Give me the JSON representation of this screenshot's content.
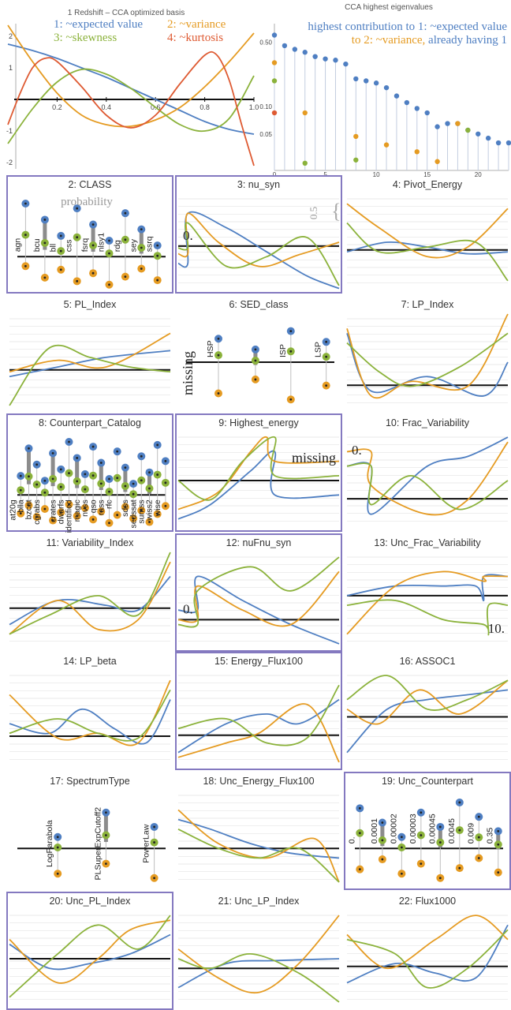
{
  "colors": {
    "blue": "#4f7fc2",
    "orange": "#e59b22",
    "green": "#8bb23b",
    "red": "#de5a32",
    "frame": "#8479c0",
    "gridline": "#e3e3e3",
    "axis": "#111111",
    "stem": "#bfbfbf",
    "barGray": "#8c8c8c"
  },
  "basis_chart": {
    "title": "1 Redshift – CCA optimized basis",
    "legend": [
      {
        "text": "1: ~expected value",
        "color": "blue"
      },
      {
        "text": "2: ~variance",
        "color": "orange"
      },
      {
        "text": "3: ~skewness",
        "color": "green"
      },
      {
        "text": "4: ~kurtosis",
        "color": "red"
      }
    ],
    "x_ticks": [
      "0.2",
      "0.4",
      "0.6",
      "0.8",
      "1.0"
    ],
    "y_ticks": [
      "2",
      "1",
      "-1",
      "-2"
    ]
  },
  "eigen_chart": {
    "title": "CCA highest eigenvalues",
    "annotation_line1": "highest contribution to 1: ~expected value",
    "annotation_line2_orange": "to 2: ~variance,",
    "annotation_line2_blue": " already having 1",
    "y_ticks": [
      "0.50",
      "0.10",
      "0.05"
    ],
    "x_ticks": [
      "0",
      "5",
      "10",
      "15",
      "20"
    ]
  },
  "chart_data": [
    {
      "type": "line",
      "title": "1 Redshift – CCA optimized basis",
      "xlim": [
        0,
        1.0
      ],
      "ylim": [
        -2.2,
        2.4
      ],
      "series": [
        {
          "name": "1: ~expected value",
          "color": "blue",
          "x": [
            0,
            0.1,
            0.2,
            0.3,
            0.4,
            0.5,
            0.6,
            0.7,
            0.8,
            0.9,
            1.0
          ],
          "values": [
            1.75,
            1.55,
            1.3,
            1.0,
            0.7,
            0.35,
            0.0,
            -0.35,
            -0.7,
            -0.95,
            -1.1
          ]
        },
        {
          "name": "2: ~variance",
          "color": "orange",
          "x": [
            0,
            0.1,
            0.2,
            0.3,
            0.4,
            0.5,
            0.6,
            0.7,
            0.8,
            0.9,
            1.0
          ],
          "values": [
            2.35,
            1.2,
            0.2,
            -0.5,
            -0.8,
            -0.85,
            -0.65,
            -0.25,
            0.4,
            1.2,
            2.1
          ]
        },
        {
          "name": "3: ~skewness",
          "color": "green",
          "x": [
            0,
            0.1,
            0.2,
            0.3,
            0.4,
            0.5,
            0.6,
            0.7,
            0.8,
            0.9,
            1.0
          ],
          "values": [
            -1.4,
            -0.3,
            0.55,
            0.95,
            0.8,
            0.35,
            -0.25,
            -0.8,
            -1.0,
            -0.6,
            0.75
          ]
        },
        {
          "name": "4: ~kurtosis",
          "color": "red",
          "x": [
            0,
            0.05,
            0.1,
            0.15,
            0.2,
            0.3,
            0.4,
            0.5,
            0.6,
            0.7,
            0.8,
            0.85,
            0.9,
            0.95,
            1.0
          ],
          "values": [
            -0.8,
            0.2,
            1.0,
            1.3,
            1.2,
            0.4,
            -0.5,
            -0.9,
            -0.5,
            0.5,
            1.4,
            1.4,
            0.6,
            -0.8,
            -2.1
          ]
        }
      ]
    },
    {
      "type": "scatter",
      "title": "CCA highest eigenvalues",
      "scale": "log",
      "xlim": [
        0,
        23
      ],
      "ylim": [
        0.02,
        0.8
      ],
      "series": [
        {
          "color": "blue",
          "x": [
            0,
            1,
            2,
            3,
            4,
            5,
            6,
            7,
            8,
            9,
            10,
            11,
            12,
            13,
            14,
            15,
            16,
            17,
            18,
            19,
            20,
            21,
            22,
            23
          ],
          "values": [
            0.6,
            0.46,
            0.42,
            0.39,
            0.35,
            0.33,
            0.32,
            0.29,
            0.2,
            0.19,
            0.18,
            0.16,
            0.13,
            0.11,
            0.095,
            0.085,
            0.06,
            0.065,
            0.065,
            0.055,
            0.05,
            0.045,
            0.04,
            0.04
          ]
        },
        {
          "color": "orange",
          "x": [
            0,
            3,
            8,
            11,
            14,
            16,
            18
          ],
          "values": [
            0.3,
            0.085,
            0.047,
            0.038,
            0.032,
            0.025,
            0.065
          ]
        },
        {
          "color": "green",
          "x": [
            0,
            3,
            8,
            19
          ],
          "values": [
            0.19,
            0.024,
            0.026,
            0.055
          ]
        },
        {
          "color": "red",
          "x": [
            0
          ],
          "values": [
            0.085
          ]
        }
      ]
    }
  ],
  "panels": [
    {
      "title": "2: CLASS",
      "frame": true,
      "kind": "categorical",
      "labels": [
        "agn",
        "bcu",
        "bll",
        "css",
        "fsrq",
        "nlsy1",
        "rdg",
        "sey",
        "ssrq"
      ],
      "axis_label": "probability",
      "label_pos": "above"
    },
    {
      "title": "3: nu_syn",
      "frame": true,
      "kind": "curve",
      "annotations": [
        "0.",
        "0.5",
        "{"
      ]
    },
    {
      "title": "4: Pivot_Energy",
      "frame": false,
      "kind": "curve",
      "annotations": []
    },
    {
      "title": "5: PL_Index",
      "frame": false,
      "kind": "curve",
      "annotations": []
    },
    {
      "title": "6: SED_class",
      "frame": false,
      "kind": "categorical",
      "labels": [
        "HSP",
        "ISP",
        "LSP"
      ],
      "missing_label": "missing",
      "label_pos": "above"
    },
    {
      "title": "7: LP_Index",
      "frame": false,
      "kind": "curve",
      "annotations": []
    },
    {
      "title": "8: Counterpart_Catalog",
      "frame": true,
      "kind": "categorical",
      "labels": [
        "at20g",
        "blla",
        "bzcat",
        "cgrabs",
        "crates",
        "dwarfs",
        "identified",
        "magic",
        "nvss",
        "qso",
        "rass",
        "rfc",
        "sdss",
        "sedssat",
        "sumss",
        "wiss2",
        "wise"
      ],
      "label_pos": "below"
    },
    {
      "title": "9: Highest_energy",
      "frame": true,
      "kind": "curve",
      "annotations": [
        "missing"
      ]
    },
    {
      "title": "10: Frac_Variability",
      "frame": false,
      "kind": "curve",
      "annotations": [
        "0."
      ]
    },
    {
      "title": "11: Variability_Index",
      "frame": false,
      "kind": "curve",
      "annotations": []
    },
    {
      "title": "12: nuFnu_syn",
      "frame": true,
      "kind": "curve",
      "annotations": [
        "0."
      ]
    },
    {
      "title": "13: Unc_Frac_Variability",
      "frame": false,
      "kind": "curve",
      "annotations": [
        "10."
      ]
    },
    {
      "title": "14: LP_beta",
      "frame": false,
      "kind": "curve",
      "annotations": []
    },
    {
      "title": "15: Energy_Flux100",
      "frame": true,
      "kind": "curve",
      "annotations": []
    },
    {
      "title": "16: ASSOC1",
      "frame": false,
      "kind": "curve",
      "annotations": []
    },
    {
      "title": "17: SpectrumType",
      "frame": false,
      "kind": "categorical",
      "labels": [
        "LogParabola",
        "PLSuperExpCutoff2",
        "PowerLaw"
      ],
      "label_pos": "left"
    },
    {
      "title": "18: Unc_Energy_Flux100",
      "frame": false,
      "kind": "curve",
      "annotations": []
    },
    {
      "title": "19: Unc_Counterpart",
      "frame": true,
      "kind": "categorical",
      "labels": [
        "0.",
        "0.0001",
        "0.00002",
        "0.00003",
        "0.00045",
        "0.0045",
        "0.009",
        "0.35"
      ],
      "label_pos": "above"
    },
    {
      "title": "20: Unc_PL_Index",
      "frame": true,
      "kind": "curve",
      "annotations": []
    },
    {
      "title": "21: Unc_LP_Index",
      "frame": false,
      "kind": "curve",
      "annotations": []
    },
    {
      "title": "22: Flux1000",
      "frame": false,
      "kind": "curve",
      "annotations": []
    }
  ]
}
